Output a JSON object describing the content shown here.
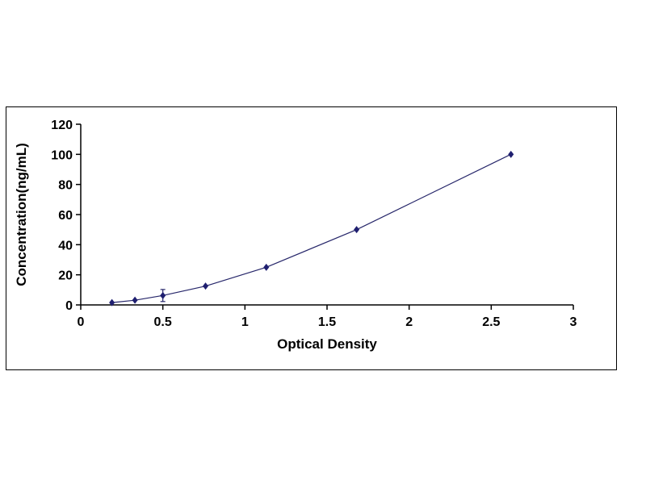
{
  "page": {
    "background": "#ffffff"
  },
  "chart_data": {
    "type": "line",
    "title": "",
    "xlabel": "Optical Density",
    "ylabel": "Concentration(ng/mL)",
    "x": [
      0.19,
      0.33,
      0.5,
      0.76,
      1.13,
      1.68,
      2.62
    ],
    "y": [
      1.56,
      3.12,
      6.25,
      12.5,
      25,
      50,
      100
    ],
    "xlim": [
      0,
      3
    ],
    "ylim": [
      0,
      120
    ],
    "x_ticks": [
      0,
      0.5,
      1,
      1.5,
      2,
      2.5,
      3
    ],
    "x_tick_labels": [
      "0",
      "0.5",
      "1",
      "1.5",
      "2",
      "2.5",
      "3"
    ],
    "y_ticks": [
      0,
      20,
      40,
      60,
      80,
      100,
      120
    ],
    "y_tick_labels": [
      "0",
      "20",
      "40",
      "60",
      "80",
      "100",
      "120"
    ],
    "marker": "diamond",
    "marker_color": "#1F1F70",
    "line_color": "#26266A",
    "axis_color": "#000000",
    "error_bar": {
      "point_index": 2,
      "plus_minus": 4
    },
    "grid": false,
    "legend": false
  }
}
